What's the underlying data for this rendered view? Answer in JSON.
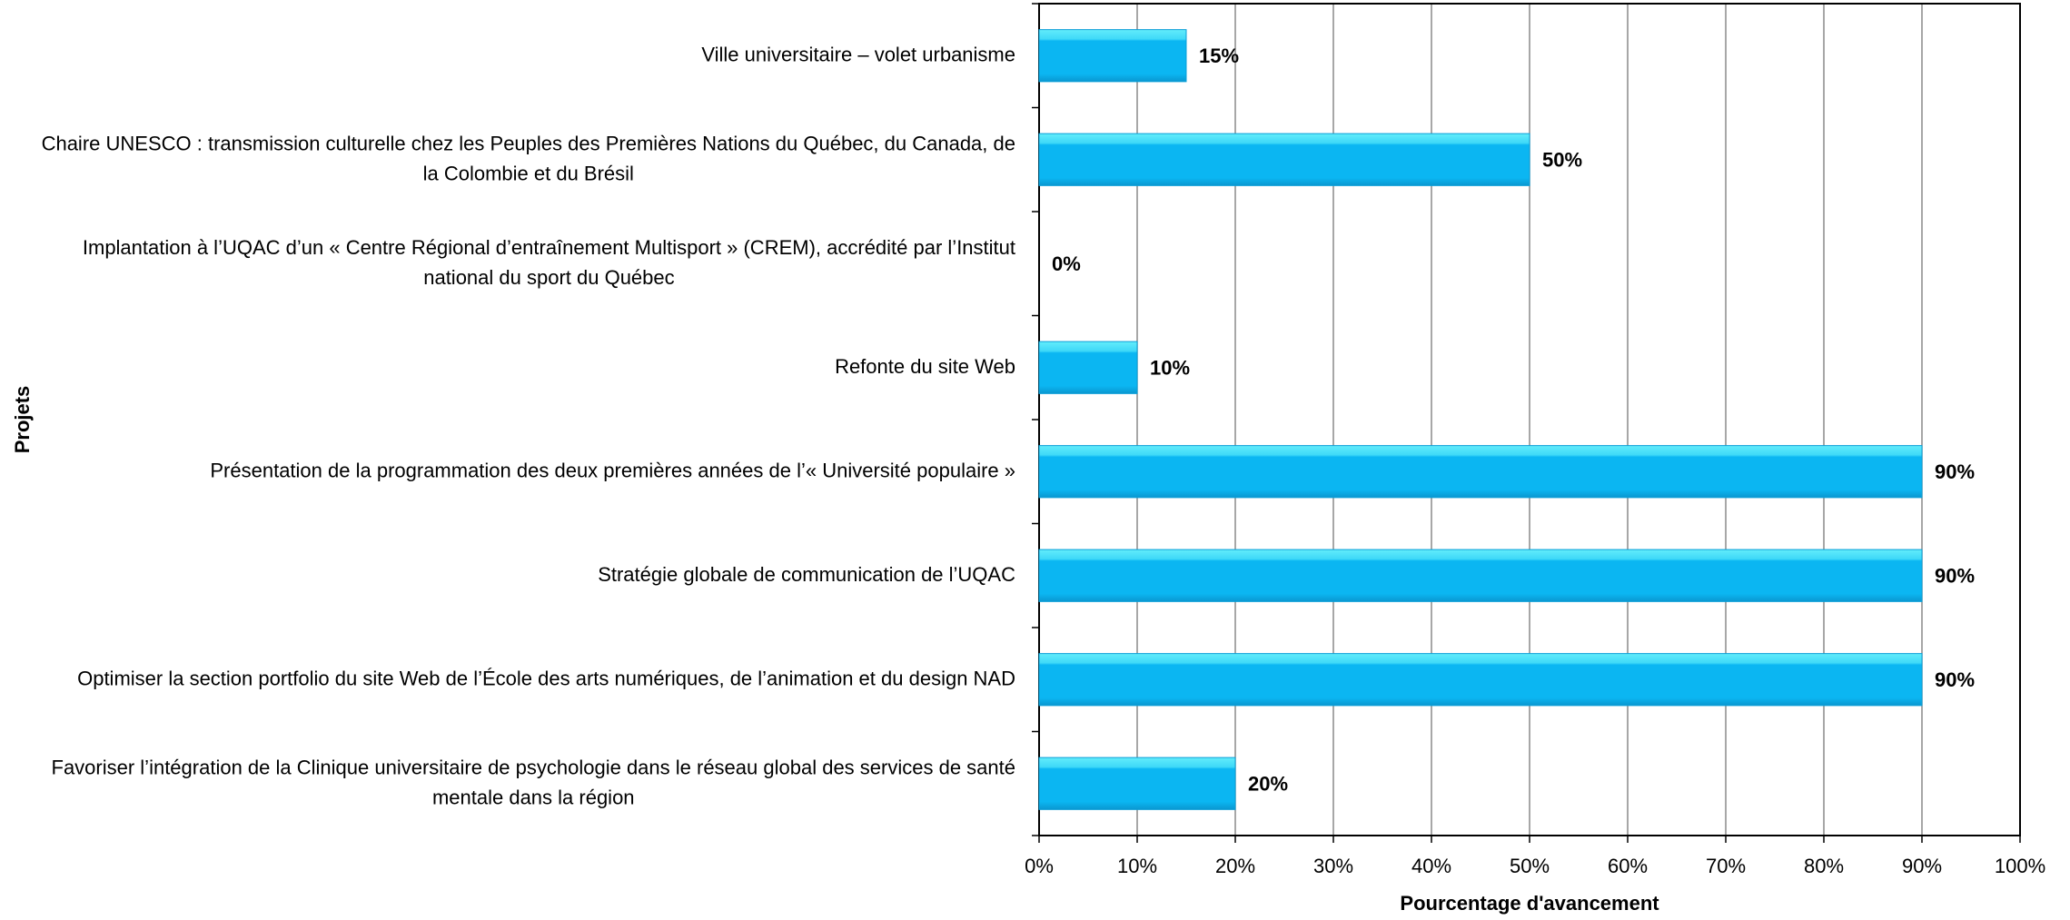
{
  "chart_data": {
    "type": "barh",
    "ylabel": "Projets",
    "xlabel": "Pourcentage d'avancement",
    "categories": [
      "Ville universitaire – volet urbanisme",
      "Chaire UNESCO : transmission culturelle chez les Peuples des Premières Nations du Québec, du Canada, de la Colombie et du Brésil",
      "Implantation à l’UQAC d’un « Centre Régional d’entraînement Multisport » (CREM), accrédité par l’Institut national du sport du Québec",
      "Refonte du site Web",
      "Présentation de la programmation des deux premières années de l’« Université populaire »",
      "Stratégie globale de communication de l’UQAC",
      "Optimiser la section portfolio du site Web de l’École des arts numériques, de l’animation et du design NAD",
      "Favoriser l’intégration de la Clinique universitaire de psychologie dans le réseau global des services de santé mentale dans la région"
    ],
    "values": [
      15,
      50,
      0,
      10,
      90,
      90,
      90,
      20
    ],
    "value_labels": [
      "15%",
      "50%",
      "0%",
      "10%",
      "90%",
      "90%",
      "90%",
      "20%"
    ],
    "color": "#0bb6f2",
    "xlim": [
      0,
      100
    ],
    "xticks": [
      {
        "value": 0,
        "label": "0%"
      },
      {
        "value": 10,
        "label": "10%"
      },
      {
        "value": 20,
        "label": "20%"
      },
      {
        "value": 30,
        "label": "30%"
      },
      {
        "value": 40,
        "label": "40%"
      },
      {
        "value": 50,
        "label": "50%"
      },
      {
        "value": 60,
        "label": "60%"
      },
      {
        "value": 70,
        "label": "70%"
      },
      {
        "value": 80,
        "label": "80%"
      },
      {
        "value": 90,
        "label": "90%"
      },
      {
        "value": 100,
        "label": "100%"
      }
    ],
    "grid": true
  }
}
